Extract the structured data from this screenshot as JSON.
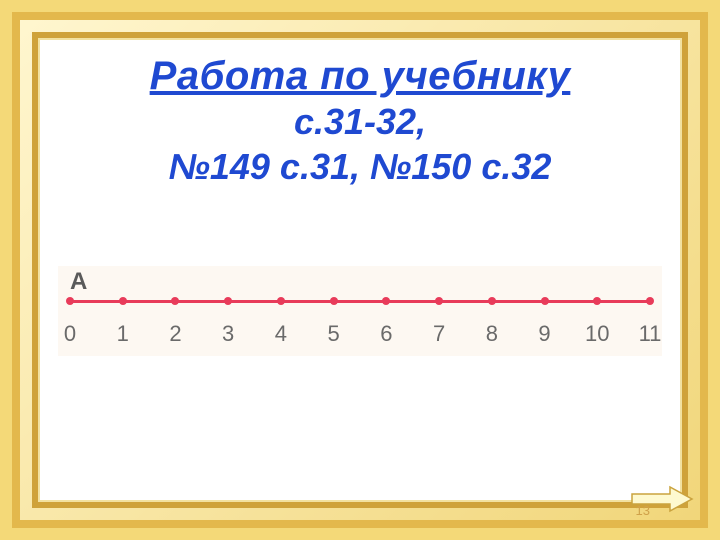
{
  "title": "Работа по учебнику",
  "subtitle_line1": "с.31-32,",
  "subtitle_line2": "№149 с.31, №150 с.32",
  "numberline": {
    "point_label": "A",
    "line_color": "#e83b5a",
    "tick_color": "#e83b5a",
    "label_color": "#6a6a6a",
    "background_color": "#fdf8f2",
    "values": [
      "0",
      "1",
      "2",
      "3",
      "4",
      "5",
      "6",
      "7",
      "8",
      "9",
      "10",
      "11"
    ],
    "min": 0,
    "max": 11
  },
  "colors": {
    "title_color": "#1f49d1",
    "frame_outer": "#f4d978",
    "frame_mid": "#e3b84c",
    "frame_inner": "#cfa23a",
    "arrow_fill": "#fef9cf",
    "arrow_stroke": "#caa33e"
  },
  "page_number": "13"
}
